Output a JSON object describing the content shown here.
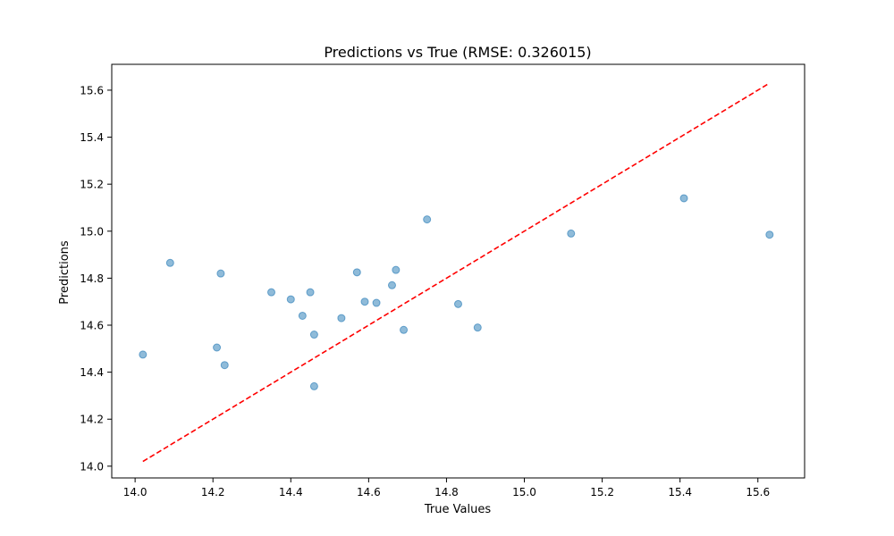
{
  "chart_data": {
    "type": "scatter",
    "title": "Predictions vs True (RMSE: 0.326015)",
    "xlabel": "True Values",
    "ylabel": "Predictions",
    "xlim": [
      13.94,
      15.72
    ],
    "ylim": [
      13.95,
      15.71
    ],
    "xticks": [
      "14.0",
      "14.2",
      "14.4",
      "14.6",
      "14.8",
      "15.0",
      "15.2",
      "15.4",
      "15.6"
    ],
    "yticks": [
      "14.0",
      "14.2",
      "14.4",
      "14.6",
      "14.8",
      "15.0",
      "15.2",
      "15.4",
      "15.6"
    ],
    "grid": false,
    "points_color": "#1f77b4",
    "reference_line": {
      "x": [
        14.02,
        15.63
      ],
      "y": [
        14.02,
        15.63
      ],
      "color": "#ff0000",
      "style": "dashed"
    },
    "series": [
      {
        "x": [
          14.02,
          14.09,
          14.21,
          14.22,
          14.23,
          14.35,
          14.4,
          14.43,
          14.45,
          14.46,
          14.46,
          14.53,
          14.57,
          14.59,
          14.62,
          14.66,
          14.67,
          14.69,
          14.75,
          14.83,
          14.88,
          15.12,
          15.41,
          15.63
        ],
        "y": [
          14.475,
          14.865,
          14.505,
          14.82,
          14.43,
          14.74,
          14.71,
          14.64,
          14.74,
          14.56,
          14.34,
          14.63,
          14.825,
          14.7,
          14.695,
          14.77,
          14.835,
          14.58,
          15.05,
          14.69,
          14.59,
          14.99,
          15.14,
          14.985
        ]
      }
    ]
  }
}
